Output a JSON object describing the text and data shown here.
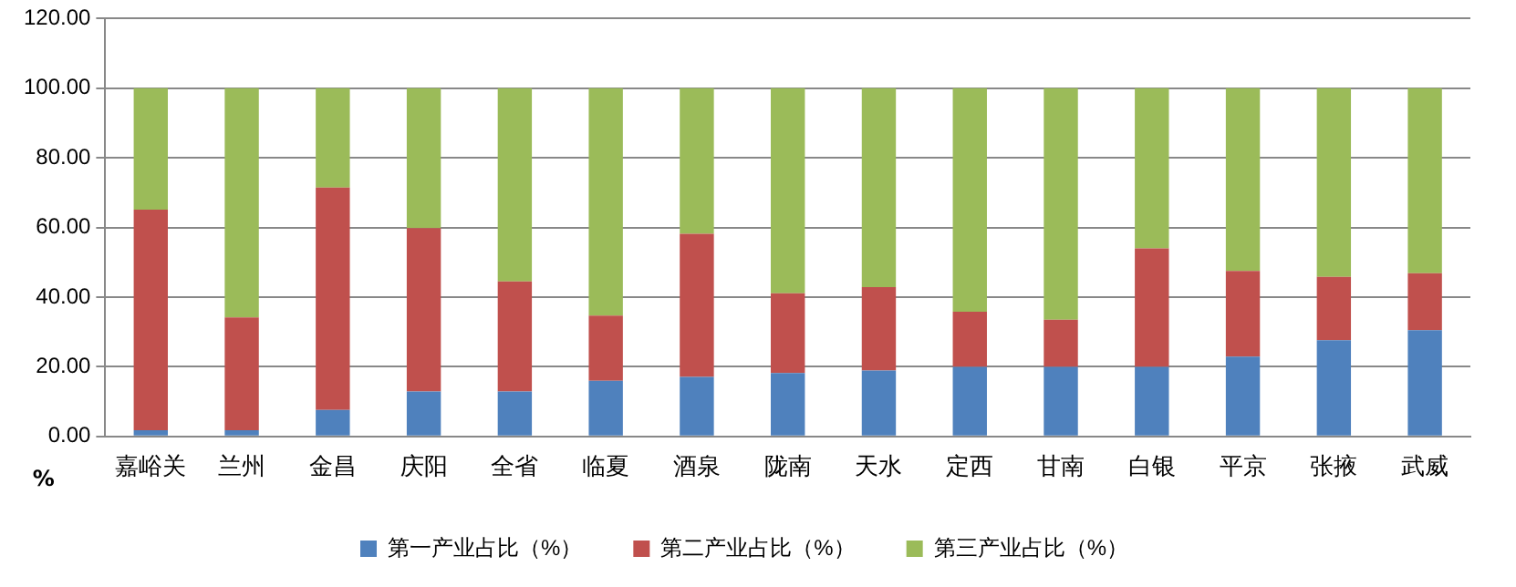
{
  "chart_data": {
    "type": "bar",
    "stacked": true,
    "ylabel": "%",
    "categories": [
      "嘉峪关",
      "兰州",
      "金昌",
      "庆阳",
      "全省",
      "临夏",
      "酒泉",
      "陇南",
      "天水",
      "定西",
      "甘南",
      "白银",
      "平京",
      "张掖",
      "武威"
    ],
    "series": [
      {
        "name": "第一产业占比（%）",
        "color": "#4f81bd",
        "values": [
          1.8,
          1.8,
          7.6,
          12.9,
          12.9,
          16.0,
          17.1,
          18.2,
          18.9,
          20.0,
          20.0,
          20.0,
          22.9,
          27.6,
          30.5
        ]
      },
      {
        "name": "第二产业占比（%）",
        "color": "#c0504d",
        "values": [
          63.3,
          32.4,
          63.9,
          46.9,
          31.6,
          18.7,
          41.1,
          22.9,
          24.0,
          15.8,
          13.5,
          34.0,
          24.6,
          18.2,
          16.4
        ]
      },
      {
        "name": "第三产业占比（%）",
        "color": "#9bbb59",
        "values": [
          34.9,
          65.8,
          28.5,
          40.2,
          55.5,
          65.3,
          41.8,
          58.9,
          57.1,
          64.2,
          66.5,
          46.0,
          52.5,
          54.2,
          53.1
        ]
      }
    ],
    "ylim": [
      0,
      120
    ],
    "yticks": [
      {
        "value": 0,
        "label": "0.00"
      },
      {
        "value": 20,
        "label": "20.00"
      },
      {
        "value": 40,
        "label": "40.00"
      },
      {
        "value": 60,
        "label": "60.00"
      },
      {
        "value": 80,
        "label": "80.00"
      },
      {
        "value": 100,
        "label": "100.00"
      },
      {
        "value": 120,
        "label": "120.00"
      }
    ],
    "grid": "y",
    "legend": "bottom"
  }
}
